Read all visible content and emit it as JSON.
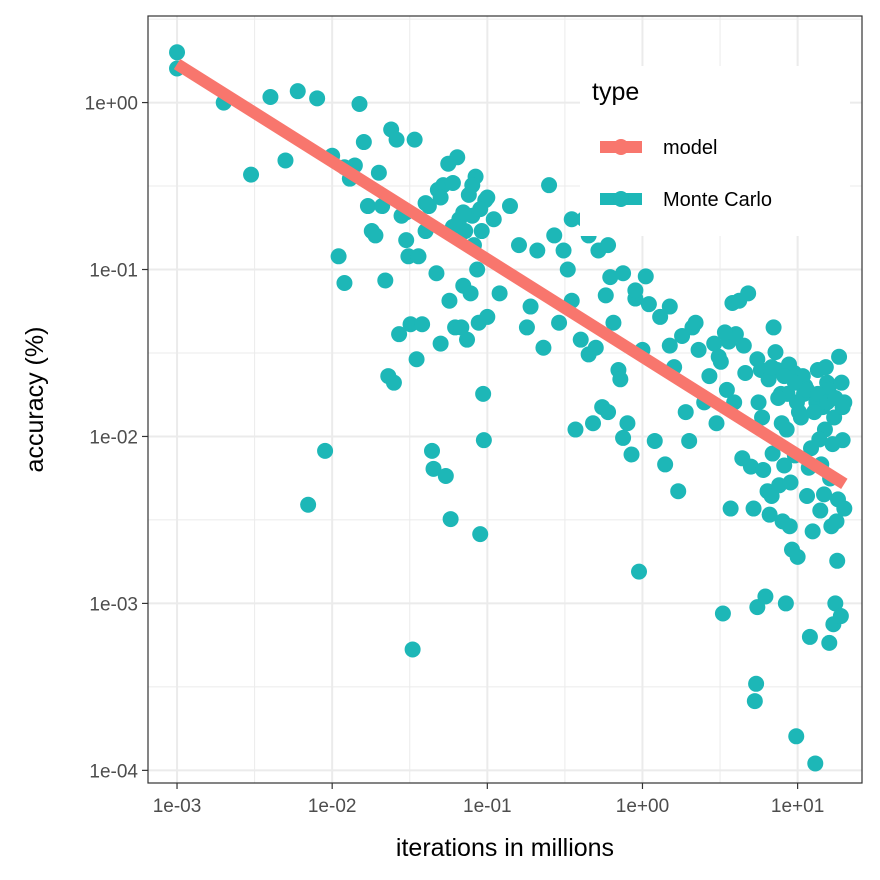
{
  "chart_data": {
    "type": "scatter",
    "xlabel": "iterations in millions",
    "ylabel": "accuracy (%)",
    "x_scale": "log10",
    "y_scale": "log10",
    "xlim": [
      0.00065,
      26
    ],
    "ylim": [
      8.4e-05,
      3.3
    ],
    "x_ticks": [
      0.001,
      0.01,
      0.1,
      1,
      10
    ],
    "x_tick_labels": [
      "1e-03",
      "1e-02",
      "1e-01",
      "1e+00",
      "1e+01"
    ],
    "y_ticks": [
      0.0001,
      0.001,
      0.01,
      0.1,
      1
    ],
    "y_tick_labels": [
      "1e-04",
      "1e-03",
      "1e-02",
      "1e-01",
      "1e+00"
    ],
    "grid": true,
    "legend": {
      "title": "type",
      "position": "top-right",
      "entries": [
        {
          "label": "model",
          "color": "#F8766D"
        },
        {
          "label": "Monte Carlo",
          "color": "#1DB7B7"
        }
      ]
    },
    "series": [
      {
        "name": "model",
        "type": "line",
        "color": "#F8766D",
        "x": [
          0.001,
          20
        ],
        "y": [
          1.7,
          0.0052
        ]
      },
      {
        "name": "Monte Carlo",
        "type": "scatter",
        "color": "#1DB7B7",
        "points": [
          [
            0.001,
            2.0
          ],
          [
            0.001,
            1.6
          ],
          [
            0.002,
            1.0
          ],
          [
            0.003,
            0.37
          ],
          [
            0.004,
            1.08
          ],
          [
            0.005,
            0.45
          ],
          [
            0.006,
            1.17
          ],
          [
            0.008,
            1.06
          ],
          [
            0.007,
            0.0039
          ],
          [
            0.009,
            0.0082
          ],
          [
            0.01,
            0.48
          ],
          [
            0.011,
            0.12
          ],
          [
            0.012,
            0.083
          ],
          [
            0.013,
            0.35
          ],
          [
            0.014,
            0.42
          ],
          [
            0.015,
            0.98
          ],
          [
            0.016,
            0.58
          ],
          [
            0.017,
            0.24
          ],
          [
            0.018,
            0.17
          ],
          [
            0.019,
            0.16
          ],
          [
            0.021,
            0.24
          ],
          [
            0.022,
            0.086
          ],
          [
            0.023,
            0.023
          ],
          [
            0.024,
            0.69
          ],
          [
            0.025,
            0.021
          ],
          [
            0.026,
            0.6
          ],
          [
            0.027,
            0.041
          ],
          [
            0.028,
            0.21
          ],
          [
            0.03,
            0.15
          ],
          [
            0.031,
            0.12
          ],
          [
            0.032,
            0.047
          ],
          [
            0.033,
            0.00053
          ],
          [
            0.034,
            0.6
          ],
          [
            0.035,
            0.029
          ],
          [
            0.036,
            0.12
          ],
          [
            0.038,
            0.047
          ],
          [
            0.04,
            0.25
          ],
          [
            0.042,
            0.24
          ],
          [
            0.044,
            0.0082
          ],
          [
            0.045,
            0.0064
          ],
          [
            0.047,
            0.095
          ],
          [
            0.048,
            0.3
          ],
          [
            0.05,
            0.036
          ],
          [
            0.052,
            0.32
          ],
          [
            0.054,
            0.0058
          ],
          [
            0.056,
            0.43
          ],
          [
            0.057,
            0.065
          ],
          [
            0.058,
            0.0032
          ],
          [
            0.06,
            0.18
          ],
          [
            0.062,
            0.045
          ],
          [
            0.064,
            0.47
          ],
          [
            0.066,
            0.2
          ],
          [
            0.068,
            0.045
          ],
          [
            0.07,
            0.08
          ],
          [
            0.072,
            0.17
          ],
          [
            0.074,
            0.038
          ],
          [
            0.076,
            0.28
          ],
          [
            0.078,
            0.072
          ],
          [
            0.08,
            0.21
          ],
          [
            0.082,
            0.14
          ],
          [
            0.084,
            0.36
          ],
          [
            0.086,
            0.1
          ],
          [
            0.088,
            0.048
          ],
          [
            0.09,
            0.0026
          ],
          [
            0.092,
            0.17
          ],
          [
            0.094,
            0.018
          ],
          [
            0.095,
            0.0095
          ],
          [
            0.097,
            0.26
          ],
          [
            0.1,
            0.052
          ],
          [
            0.11,
            0.2
          ],
          [
            0.12,
            0.072
          ],
          [
            0.14,
            0.24
          ],
          [
            0.16,
            0.14
          ],
          [
            0.18,
            0.045
          ],
          [
            0.19,
            0.06
          ],
          [
            0.21,
            0.13
          ],
          [
            0.23,
            0.034
          ],
          [
            0.25,
            0.32
          ],
          [
            0.27,
            0.16
          ],
          [
            0.29,
            0.048
          ],
          [
            0.31,
            0.13
          ],
          [
            0.33,
            0.1
          ],
          [
            0.35,
            0.065
          ],
          [
            0.37,
            0.011
          ],
          [
            0.4,
            0.038
          ],
          [
            0.42,
            0.2
          ],
          [
            0.45,
            0.031
          ],
          [
            0.48,
            0.012
          ],
          [
            0.5,
            0.034
          ],
          [
            0.52,
            0.13
          ],
          [
            0.55,
            0.015
          ],
          [
            0.58,
            0.07
          ],
          [
            0.6,
            0.014
          ],
          [
            0.62,
            0.09
          ],
          [
            0.65,
            0.048
          ],
          [
            0.7,
            0.025
          ],
          [
            0.72,
            0.022
          ],
          [
            0.75,
            0.0098
          ],
          [
            0.8,
            0.012
          ],
          [
            0.85,
            0.0078
          ],
          [
            0.9,
            0.067
          ],
          [
            0.95,
            0.00155
          ],
          [
            1.0,
            0.033
          ],
          [
            1.05,
            0.091
          ],
          [
            1.1,
            0.062
          ],
          [
            1.2,
            0.0094
          ],
          [
            1.3,
            0.052
          ],
          [
            1.4,
            0.0068
          ],
          [
            1.5,
            0.035
          ],
          [
            1.6,
            0.026
          ],
          [
            1.7,
            0.0047
          ],
          [
            1.8,
            0.04
          ],
          [
            1.9,
            0.014
          ],
          [
            2.0,
            0.0094
          ],
          [
            2.1,
            0.045
          ],
          [
            2.3,
            0.033
          ],
          [
            2.5,
            0.016
          ],
          [
            2.7,
            0.023
          ],
          [
            2.9,
            0.036
          ],
          [
            3.0,
            0.012
          ],
          [
            3.1,
            0.03
          ],
          [
            3.2,
            0.028
          ],
          [
            3.3,
            0.00087
          ],
          [
            3.5,
            0.019
          ],
          [
            3.6,
            0.037
          ],
          [
            3.7,
            0.0037
          ],
          [
            3.8,
            0.063
          ],
          [
            3.9,
            0.016
          ],
          [
            4.0,
            0.041
          ],
          [
            4.2,
            0.065
          ],
          [
            4.4,
            0.0074
          ],
          [
            4.6,
            0.024
          ],
          [
            4.8,
            0.072
          ],
          [
            5.0,
            0.0066
          ],
          [
            5.2,
            0.0037
          ],
          [
            5.3,
            0.00026
          ],
          [
            5.4,
            0.00033
          ],
          [
            5.5,
            0.00095
          ],
          [
            5.6,
            0.016
          ],
          [
            5.8,
            0.025
          ],
          [
            6.0,
            0.0063
          ],
          [
            6.2,
            0.0011
          ],
          [
            6.4,
            0.0047
          ],
          [
            6.6,
            0.0034
          ],
          [
            6.8,
            0.0044
          ],
          [
            7.0,
            0.045
          ],
          [
            7.2,
            0.032
          ],
          [
            7.4,
            0.025
          ],
          [
            7.6,
            0.0051
          ],
          [
            7.8,
            0.018
          ],
          [
            8.0,
            0.0031
          ],
          [
            8.2,
            0.0067
          ],
          [
            8.4,
            0.001
          ],
          [
            8.6,
            0.018
          ],
          [
            8.8,
            0.027
          ],
          [
            9.0,
            0.0053
          ],
          [
            9.2,
            0.0021
          ],
          [
            9.4,
            0.022
          ],
          [
            9.6,
            0.0077
          ],
          [
            9.8,
            0.00016
          ],
          [
            10.0,
            0.0019
          ],
          [
            10.5,
            0.013
          ],
          [
            11.0,
            0.018
          ],
          [
            11.5,
            0.0044
          ],
          [
            12.0,
            0.00063
          ],
          [
            12.5,
            0.0027
          ],
          [
            13.0,
            0.00011
          ],
          [
            13.5,
            0.025
          ],
          [
            14.0,
            0.0036
          ],
          [
            14.5,
            0.015
          ],
          [
            15.0,
            0.011
          ],
          [
            15.5,
            0.021
          ],
          [
            16.0,
            0.00058
          ],
          [
            16.5,
            0.0029
          ],
          [
            17.0,
            0.00075
          ],
          [
            17.5,
            0.001
          ],
          [
            18.0,
            0.0018
          ],
          [
            18.5,
            0.03
          ],
          [
            19.0,
            0.00084
          ],
          [
            19.5,
            0.0095
          ],
          [
            20.0,
            0.016
          ],
          [
            6.5,
            0.022
          ],
          [
            7.5,
            0.017
          ],
          [
            8.5,
            0.011
          ],
          [
            9.5,
            0.024
          ],
          [
            10.2,
            0.014
          ],
          [
            11.2,
            0.02
          ],
          [
            12.2,
            0.0085
          ],
          [
            13.2,
            0.016
          ],
          [
            14.2,
            0.0068
          ],
          [
            15.2,
            0.026
          ],
          [
            16.2,
            0.0056
          ],
          [
            17.2,
            0.013
          ],
          [
            18.2,
            0.0042
          ],
          [
            19.2,
            0.021
          ],
          [
            20.0,
            0.0037
          ],
          [
            17.8,
            0.0031
          ],
          [
            16.8,
            0.009
          ],
          [
            15.8,
            0.019
          ],
          [
            14.8,
            0.0045
          ],
          [
            13.8,
            0.0096
          ],
          [
            12.8,
            0.014
          ],
          [
            11.8,
            0.0065
          ],
          [
            10.8,
            0.023
          ],
          [
            9.9,
            0.016
          ],
          [
            8.9,
            0.0029
          ],
          [
            7.9,
            0.012
          ],
          [
            6.9,
            0.0079
          ],
          [
            5.9,
            0.013
          ],
          [
            0.06,
            0.33
          ],
          [
            0.08,
            0.32
          ],
          [
            0.1,
            0.27
          ],
          [
            0.05,
            0.27
          ],
          [
            0.07,
            0.22
          ],
          [
            0.04,
            0.17
          ],
          [
            0.03,
            0.22
          ],
          [
            0.09,
            0.23
          ],
          [
            0.012,
            0.41
          ],
          [
            0.02,
            0.38
          ],
          [
            0.35,
            0.2
          ],
          [
            0.45,
            0.16
          ],
          [
            0.6,
            0.14
          ],
          [
            0.75,
            0.095
          ],
          [
            0.9,
            0.075
          ],
          [
            1.5,
            0.06
          ],
          [
            2.2,
            0.048
          ],
          [
            3.4,
            0.042
          ],
          [
            4.5,
            0.035
          ],
          [
            5.5,
            0.029
          ],
          [
            6.8,
            0.026
          ],
          [
            8.2,
            0.023
          ],
          [
            9.6,
            0.021
          ],
          [
            11.5,
            0.019
          ],
          [
            13.5,
            0.018
          ],
          [
            15.5,
            0.016
          ],
          [
            17.5,
            0.017
          ],
          [
            19.5,
            0.015
          ]
        ]
      }
    ]
  }
}
